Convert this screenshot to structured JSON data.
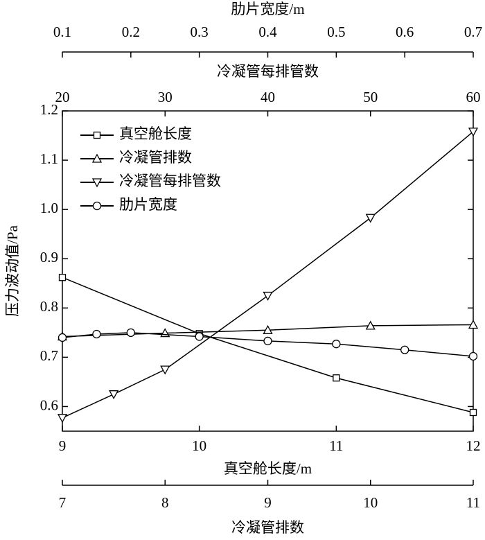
{
  "chart_data": {
    "type": "line",
    "ylabel": "压力波动值/Pa",
    "ylim": [
      0.55,
      1.2
    ],
    "yticks": [
      0.6,
      0.7,
      0.8,
      0.9,
      {
        "value": 1,
        "label": "1.0"
      },
      1.1,
      1.2
    ],
    "legend": "upper left",
    "color": "#000000",
    "xaxes": [
      {
        "label": "真空舱长度/m",
        "xlim": [
          9,
          12
        ],
        "xticks": [
          9,
          10,
          11,
          12
        ]
      },
      {
        "label": "冷凝管排数",
        "xlim": [
          7,
          11
        ],
        "xticks": [
          7,
          8,
          9,
          10,
          11
        ]
      },
      {
        "label": "冷凝管每排管数",
        "xlim": [
          20,
          60
        ],
        "xticks": [
          20,
          30,
          40,
          50,
          60
        ]
      },
      {
        "label": "肋片宽度/m",
        "xlim": [
          0.1,
          0.7
        ],
        "xticks": [
          0.1,
          0.2,
          0.3,
          0.4,
          0.5,
          0.6,
          0.7
        ]
      }
    ],
    "series": [
      {
        "name": "真空舱长度",
        "marker": "square",
        "xaxis": 0,
        "x": [
          9,
          10,
          11,
          12
        ],
        "values": [
          0.862,
          0.748,
          0.658,
          0.588
        ]
      },
      {
        "name": "冷凝管排数",
        "marker": "triangle-up",
        "xaxis": 1,
        "x": [
          7,
          8,
          9,
          10,
          11
        ],
        "values": [
          0.742,
          0.749,
          0.755,
          0.764,
          0.766
        ]
      },
      {
        "name": "冷凝管每排管数",
        "marker": "triangle-down",
        "xaxis": 2,
        "x": [
          20,
          25,
          30,
          40,
          50,
          60
        ],
        "values": [
          0.577,
          0.625,
          0.675,
          0.825,
          0.983,
          1.158
        ]
      },
      {
        "name": "肋片宽度",
        "marker": "circle",
        "xaxis": 3,
        "x": [
          0.1,
          0.15,
          0.2,
          0.3,
          0.4,
          0.5,
          0.6,
          0.7
        ],
        "values": [
          0.74,
          0.747,
          0.75,
          0.742,
          0.733,
          0.727,
          0.715,
          0.702
        ]
      }
    ]
  }
}
